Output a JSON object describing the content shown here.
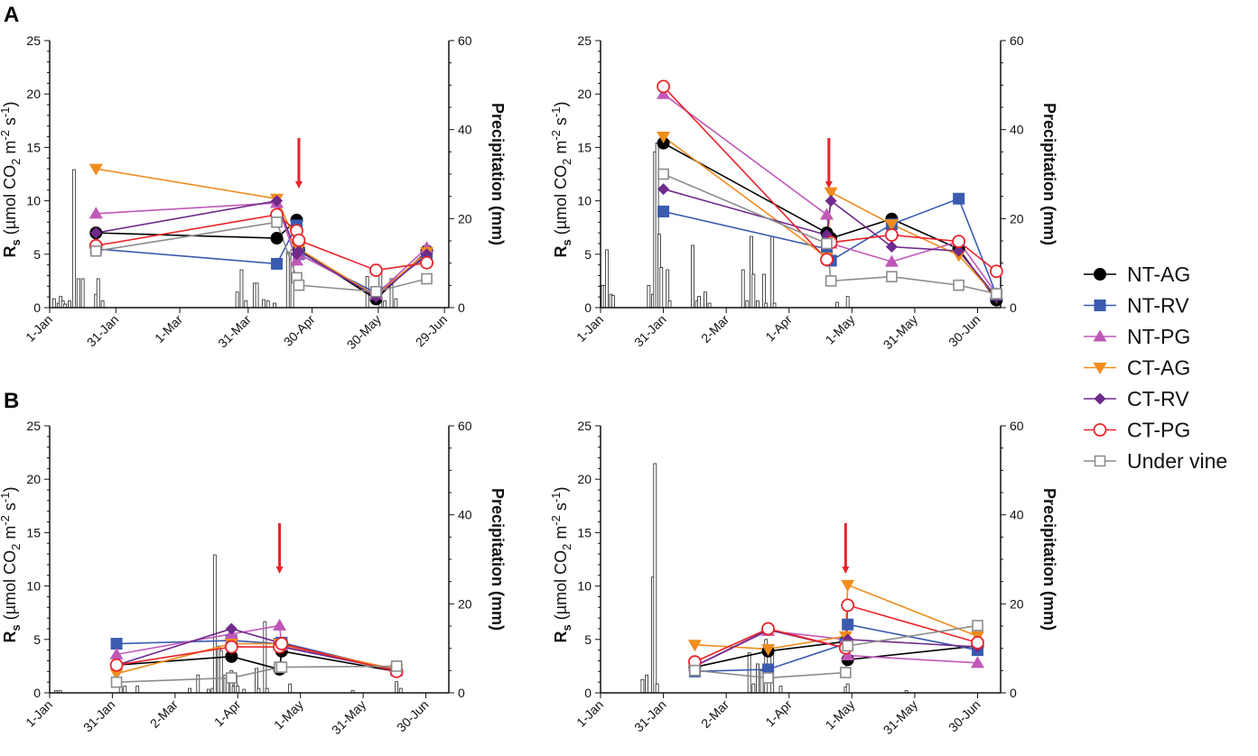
{
  "panel_letters": [
    "A",
    "B"
  ],
  "legend": [
    {
      "name": "NT-AG",
      "color": "#000000",
      "marker": "circle-filled"
    },
    {
      "name": "NT-RV",
      "color": "#3a5bb0",
      "marker": "square-filled"
    },
    {
      "name": "NT-PG",
      "color": "#c058b8",
      "marker": "triangle-up-filled"
    },
    {
      "name": "CT-AG",
      "color": "#f08c1e",
      "marker": "triangle-down-filled"
    },
    {
      "name": "CT-RV",
      "color": "#6e2a8c",
      "marker": "diamond-filled"
    },
    {
      "name": "CT-PG",
      "color": "#e8242a",
      "marker": "circle-open"
    },
    {
      "name": "Under vine",
      "color": "#8c8c8c",
      "marker": "square-open"
    }
  ],
  "arrow_color": "#e8242a",
  "chart_data": [
    {
      "type": "line",
      "panel": "A",
      "position": "left",
      "ylabel": "Rs (µmol CO2 m-2 s-1)",
      "y2label": "Precipitation (mm)",
      "ylim": [
        0,
        25
      ],
      "y_ticks": [
        0,
        5,
        10,
        15,
        20,
        25
      ],
      "y2lim": [
        0,
        60
      ],
      "y2_ticks": [
        0,
        20,
        40,
        60
      ],
      "xlim": [
        0,
        181
      ],
      "x_ticks": [
        {
          "day": 0,
          "label": "1-Jan"
        },
        {
          "day": 30,
          "label": "31-Jan"
        },
        {
          "day": 59,
          "label": "1-Mar"
        },
        {
          "day": 90,
          "label": "31-Mar"
        },
        {
          "day": 119,
          "label": "30-Apr"
        },
        {
          "day": 149,
          "label": "30-May"
        },
        {
          "day": 179,
          "label": "29-Jun"
        }
      ],
      "arrow_day": 113,
      "precipitation": [
        [
          2,
          2
        ],
        [
          4,
          1
        ],
        [
          5,
          2.5
        ],
        [
          6,
          1.5
        ],
        [
          7,
          0.8
        ],
        [
          9,
          1.5
        ],
        [
          11,
          31
        ],
        [
          13,
          6.5
        ],
        [
          15,
          6.5
        ],
        [
          21,
          3
        ],
        [
          22,
          6.5
        ],
        [
          24,
          1.5
        ],
        [
          85,
          3.5
        ],
        [
          87,
          8.5
        ],
        [
          89,
          1.5
        ],
        [
          93,
          5.5
        ],
        [
          94,
          5.5
        ],
        [
          97,
          1.8
        ],
        [
          99,
          1.5
        ],
        [
          102,
          1
        ],
        [
          108,
          12.5
        ],
        [
          110,
          13
        ],
        [
          144,
          7
        ],
        [
          150,
          8
        ],
        [
          152,
          1.5
        ],
        [
          155,
          6.5
        ],
        [
          157,
          2
        ]
      ],
      "series": [
        {
          "name": "NT-AG",
          "x": [
            21,
            103,
            112,
            113,
            148,
            171
          ],
          "y": [
            7.0,
            6.5,
            8.2,
            5.4,
            0.8,
            5.3
          ]
        },
        {
          "name": "NT-RV",
          "x": [
            21,
            103,
            112,
            113,
            148,
            171
          ],
          "y": [
            5.5,
            4.1,
            7.7,
            5.0,
            1.4,
            4.8
          ]
        },
        {
          "name": "NT-PG",
          "x": [
            21,
            103,
            112,
            113,
            148,
            171
          ],
          "y": [
            8.8,
            9.8,
            4.4,
            5.0,
            1.2,
            5.6
          ]
        },
        {
          "name": "CT-AG",
          "x": [
            21,
            103,
            112,
            113,
            148,
            171
          ],
          "y": [
            13.0,
            10.2,
            6.0,
            5.5,
            1.1,
            5.2
          ]
        },
        {
          "name": "CT-RV",
          "x": [
            21,
            103,
            112,
            113,
            148,
            171
          ],
          "y": [
            7.0,
            10.0,
            5.0,
            5.3,
            1.0,
            5.0
          ]
        },
        {
          "name": "CT-PG",
          "x": [
            21,
            103,
            112,
            113,
            148,
            171
          ],
          "y": [
            5.8,
            8.7,
            7.2,
            6.3,
            3.5,
            4.2
          ]
        },
        {
          "name": "Under vine",
          "x": [
            21,
            103,
            112,
            113,
            148,
            171
          ],
          "y": [
            5.3,
            8.0,
            2.8,
            2.1,
            1.5,
            2.7
          ]
        }
      ]
    },
    {
      "type": "line",
      "panel": "A",
      "position": "right",
      "ylabel": "Rs (µmol CO2 m-2 s-1)",
      "y2label": "Precipitation (mm)",
      "ylim": [
        0,
        25
      ],
      "y_ticks": [
        0,
        5,
        10,
        15,
        20,
        25
      ],
      "y2lim": [
        0,
        60
      ],
      "y2_ticks": [
        0,
        20,
        40,
        60
      ],
      "xlim": [
        0,
        191
      ],
      "x_ticks": [
        {
          "day": 0,
          "label": "1-Jan"
        },
        {
          "day": 30,
          "label": "31-Jan"
        },
        {
          "day": 60,
          "label": "2-Mar"
        },
        {
          "day": 90,
          "label": "1-Apr"
        },
        {
          "day": 120,
          "label": "1-May"
        },
        {
          "day": 150,
          "label": "31-May"
        },
        {
          "day": 180,
          "label": "30-Jun"
        }
      ],
      "arrow_day": 109,
      "precipitation": [
        [
          1,
          5
        ],
        [
          2,
          5
        ],
        [
          3,
          13
        ],
        [
          5,
          3
        ],
        [
          6,
          2.7
        ],
        [
          23,
          5
        ],
        [
          25,
          3
        ],
        [
          26,
          35
        ],
        [
          27,
          37
        ],
        [
          28,
          16.5
        ],
        [
          29,
          9
        ],
        [
          32,
          8.5
        ],
        [
          33,
          1.5
        ],
        [
          44,
          14
        ],
        [
          46,
          1.5
        ],
        [
          47,
          2.5
        ],
        [
          50,
          3.5
        ],
        [
          52,
          1
        ],
        [
          68,
          8.5
        ],
        [
          70,
          1.5
        ],
        [
          72,
          16
        ],
        [
          73,
          7.5
        ],
        [
          75,
          1.5
        ],
        [
          78,
          7.5
        ],
        [
          79,
          1
        ],
        [
          82,
          16
        ],
        [
          83,
          1
        ],
        [
          113,
          1.2
        ],
        [
          118,
          2.5
        ]
      ],
      "series": [
        {
          "name": "NT-AG",
          "x": [
            30,
            108,
            110,
            139,
            171,
            189
          ],
          "y": [
            15.4,
            7.0,
            6.5,
            8.3,
            5.5,
            0.7
          ]
        },
        {
          "name": "NT-RV",
          "x": [
            30,
            108,
            110,
            139,
            171,
            189
          ],
          "y": [
            9.0,
            5.5,
            4.4,
            7.8,
            10.2,
            1.2
          ]
        },
        {
          "name": "NT-PG",
          "x": [
            30,
            108,
            110,
            139,
            171,
            189
          ],
          "y": [
            20.0,
            8.7,
            6.0,
            4.3,
            6.2,
            1.3
          ]
        },
        {
          "name": "CT-AG",
          "x": [
            30,
            108,
            110,
            139,
            171,
            189
          ],
          "y": [
            16.0,
            4.7,
            10.8,
            7.8,
            4.9,
            1.0
          ]
        },
        {
          "name": "CT-RV",
          "x": [
            30,
            108,
            110,
            139,
            171,
            189
          ],
          "y": [
            11.1,
            6.8,
            10.0,
            5.7,
            5.3,
            1.0
          ]
        },
        {
          "name": "CT-PG",
          "x": [
            30,
            108,
            110,
            139,
            171,
            189
          ],
          "y": [
            20.7,
            4.5,
            6.1,
            6.8,
            6.2,
            3.4
          ]
        },
        {
          "name": "Under vine",
          "x": [
            30,
            108,
            110,
            139,
            171,
            189
          ],
          "y": [
            12.5,
            6.0,
            2.5,
            2.9,
            2.1,
            1.3
          ]
        }
      ]
    },
    {
      "type": "line",
      "panel": "B",
      "position": "left",
      "ylabel": "Rs (µmol CO2 m-2 s-1)",
      "y2label": "Precipitation (mm)",
      "ylim": [
        0,
        25
      ],
      "y_ticks": [
        0,
        5,
        10,
        15,
        20,
        25
      ],
      "y2lim": [
        0,
        60
      ],
      "y2_ticks": [
        0,
        20,
        40,
        60
      ],
      "xlim": [
        0,
        191
      ],
      "x_ticks": [
        {
          "day": 0,
          "label": "1-Jan"
        },
        {
          "day": 30,
          "label": "31-Jan"
        },
        {
          "day": 60,
          "label": "2-Mar"
        },
        {
          "day": 90,
          "label": "1-Apr"
        },
        {
          "day": 120,
          "label": "1-May"
        },
        {
          "day": 150,
          "label": "31-May"
        },
        {
          "day": 180,
          "label": "30-Jun"
        }
      ],
      "arrow_day": 110,
      "precipitation": [
        [
          3,
          0.5
        ],
        [
          5,
          0.5
        ],
        [
          34,
          1.5
        ],
        [
          36,
          1.5
        ],
        [
          42,
          1.5
        ],
        [
          67,
          1
        ],
        [
          71,
          4
        ],
        [
          76,
          0.8
        ],
        [
          78,
          1
        ],
        [
          79,
          31
        ],
        [
          81,
          10.5
        ],
        [
          82,
          9.5
        ],
        [
          84,
          4
        ],
        [
          85,
          3.5
        ],
        [
          87,
          5
        ],
        [
          88,
          1.5
        ],
        [
          89,
          4
        ],
        [
          90,
          1.5
        ],
        [
          93,
          0.8
        ],
        [
          99,
          5.5
        ],
        [
          100,
          1
        ],
        [
          103,
          16
        ],
        [
          104,
          1
        ],
        [
          115,
          2
        ],
        [
          145,
          0.5
        ],
        [
          166,
          2.5
        ],
        [
          168,
          1
        ]
      ],
      "series": [
        {
          "name": "NT-AG",
          "x": [
            32,
            87,
            110,
            111,
            166
          ],
          "y": [
            2.6,
            3.4,
            2.2,
            3.9,
            2.0
          ]
        },
        {
          "name": "NT-RV",
          "x": [
            32,
            87,
            110,
            111,
            166
          ],
          "y": [
            4.6,
            4.9,
            4.6,
            4.7,
            2.1
          ]
        },
        {
          "name": "NT-PG",
          "x": [
            32,
            87,
            110,
            111,
            166
          ],
          "y": [
            3.6,
            5.5,
            6.3,
            4.4,
            2.1
          ]
        },
        {
          "name": "CT-AG",
          "x": [
            32,
            87,
            110,
            111,
            166
          ],
          "y": [
            1.8,
            4.6,
            4.6,
            4.5,
            2.2
          ]
        },
        {
          "name": "CT-RV",
          "x": [
            32,
            87,
            110,
            111,
            166
          ],
          "y": [
            2.6,
            6.0,
            4.7,
            4.3,
            2.1
          ]
        },
        {
          "name": "CT-PG",
          "x": [
            32,
            87,
            110,
            111,
            166
          ],
          "y": [
            2.6,
            4.3,
            4.3,
            4.6,
            2.0
          ]
        },
        {
          "name": "Under vine",
          "x": [
            32,
            87,
            110,
            111,
            166
          ],
          "y": [
            1.0,
            1.4,
            2.4,
            2.4,
            2.5
          ]
        }
      ]
    },
    {
      "type": "line",
      "panel": "B",
      "position": "right",
      "ylabel": "Rs (µmol CO2 m-2 s-1)",
      "y2label": "Precipitation (mm)",
      "ylim": [
        0,
        25
      ],
      "y_ticks": [
        0,
        5,
        10,
        15,
        20,
        25
      ],
      "y2lim": [
        0,
        60
      ],
      "y2_ticks": [
        0,
        20,
        40,
        60
      ],
      "xlim": [
        0,
        191
      ],
      "x_ticks": [
        {
          "day": 0,
          "label": "1-Jan"
        },
        {
          "day": 30,
          "label": "31-Jan"
        },
        {
          "day": 60,
          "label": "2-Mar"
        },
        {
          "day": 90,
          "label": "1-Apr"
        },
        {
          "day": 120,
          "label": "1-May"
        },
        {
          "day": 150,
          "label": "31-May"
        },
        {
          "day": 180,
          "label": "30-Jun"
        }
      ],
      "arrow_day": 117,
      "precipitation": [
        [
          20,
          3
        ],
        [
          22,
          4
        ],
        [
          25,
          26
        ],
        [
          26,
          51.5
        ],
        [
          27,
          2
        ],
        [
          71,
          9
        ],
        [
          73,
          2
        ],
        [
          75,
          6.5
        ],
        [
          77,
          5
        ],
        [
          79,
          12
        ],
        [
          82,
          10
        ],
        [
          86,
          1.5
        ],
        [
          117,
          1.3
        ],
        [
          118,
          2
        ],
        [
          146,
          0.5
        ]
      ],
      "series": [
        {
          "name": "NT-AG",
          "x": [
            45,
            80,
            117,
            118,
            180
          ],
          "y": [
            2.4,
            3.9,
            4.8,
            3.1,
            4.4
          ]
        },
        {
          "name": "NT-RV",
          "x": [
            45,
            80,
            117,
            118,
            180
          ],
          "y": [
            2.0,
            2.2,
            4.6,
            6.4,
            4.0
          ]
        },
        {
          "name": "NT-PG",
          "x": [
            45,
            80,
            117,
            118,
            180
          ],
          "y": [
            2.5,
            5.8,
            5.0,
            3.5,
            2.8
          ]
        },
        {
          "name": "CT-AG",
          "x": [
            45,
            80,
            117,
            118,
            180
          ],
          "y": [
            4.5,
            4.1,
            5.3,
            10.1,
            5.3
          ]
        },
        {
          "name": "CT-RV",
          "x": [
            45,
            80,
            117,
            118,
            180
          ],
          "y": [
            2.5,
            5.9,
            4.2,
            5.0,
            4.3
          ]
        },
        {
          "name": "CT-PG",
          "x": [
            45,
            80,
            117,
            118,
            180
          ],
          "y": [
            2.9,
            6.0,
            4.2,
            8.2,
            4.7
          ]
        },
        {
          "name": "Under vine",
          "x": [
            45,
            80,
            117,
            118,
            180
          ],
          "y": [
            2.1,
            1.4,
            1.9,
            4.4,
            6.3
          ]
        }
      ]
    }
  ]
}
